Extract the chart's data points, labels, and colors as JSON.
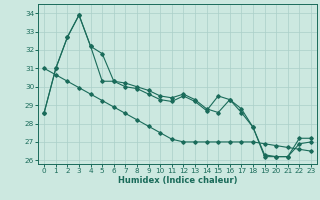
{
  "xlabel": "Humidex (Indice chaleur)",
  "ylabel": "",
  "background_color": "#cce8e0",
  "line_color": "#1a6b5a",
  "grid_color": "#aacfc8",
  "xlim": [
    -0.5,
    23.5
  ],
  "ylim": [
    25.8,
    34.5
  ],
  "yticks": [
    26,
    27,
    28,
    29,
    30,
    31,
    32,
    33,
    34
  ],
  "xticks": [
    0,
    1,
    2,
    3,
    4,
    5,
    6,
    7,
    8,
    9,
    10,
    11,
    12,
    13,
    14,
    15,
    16,
    17,
    18,
    19,
    20,
    21,
    22,
    23
  ],
  "series1": {
    "x": [
      0,
      1,
      2,
      3,
      4,
      5,
      6,
      7,
      8,
      9,
      10,
      11,
      12,
      13,
      14,
      15,
      16,
      17,
      18,
      19,
      20,
      21,
      22,
      23
    ],
    "y": [
      28.6,
      31.0,
      32.7,
      33.9,
      32.2,
      31.8,
      30.3,
      30.2,
      30.0,
      29.8,
      29.5,
      29.4,
      29.6,
      29.3,
      28.8,
      28.6,
      29.3,
      28.6,
      27.8,
      26.3,
      26.2,
      26.2,
      26.9,
      27.0
    ]
  },
  "series2": {
    "x": [
      0,
      1,
      2,
      3,
      4,
      5,
      6,
      7,
      8,
      9,
      10,
      11,
      12,
      13,
      14,
      15,
      16,
      17,
      18,
      19,
      20,
      21,
      22,
      23
    ],
    "y": [
      31.0,
      30.65,
      30.3,
      29.95,
      29.6,
      29.25,
      28.9,
      28.55,
      28.2,
      27.85,
      27.5,
      27.15,
      27.0,
      27.0,
      27.0,
      27.0,
      27.0,
      27.0,
      27.0,
      26.9,
      26.8,
      26.7,
      26.6,
      26.5
    ]
  },
  "series3": {
    "x": [
      0,
      1,
      2,
      3,
      4,
      5,
      6,
      7,
      8,
      9,
      10,
      11,
      12,
      13,
      14,
      15,
      16,
      17,
      18,
      19,
      20,
      21,
      22,
      23
    ],
    "y": [
      28.6,
      31.0,
      32.7,
      33.9,
      32.2,
      30.3,
      30.3,
      30.0,
      29.9,
      29.6,
      29.3,
      29.2,
      29.5,
      29.2,
      28.7,
      29.5,
      29.3,
      28.8,
      27.8,
      26.2,
      26.2,
      26.2,
      27.2,
      27.2
    ]
  }
}
